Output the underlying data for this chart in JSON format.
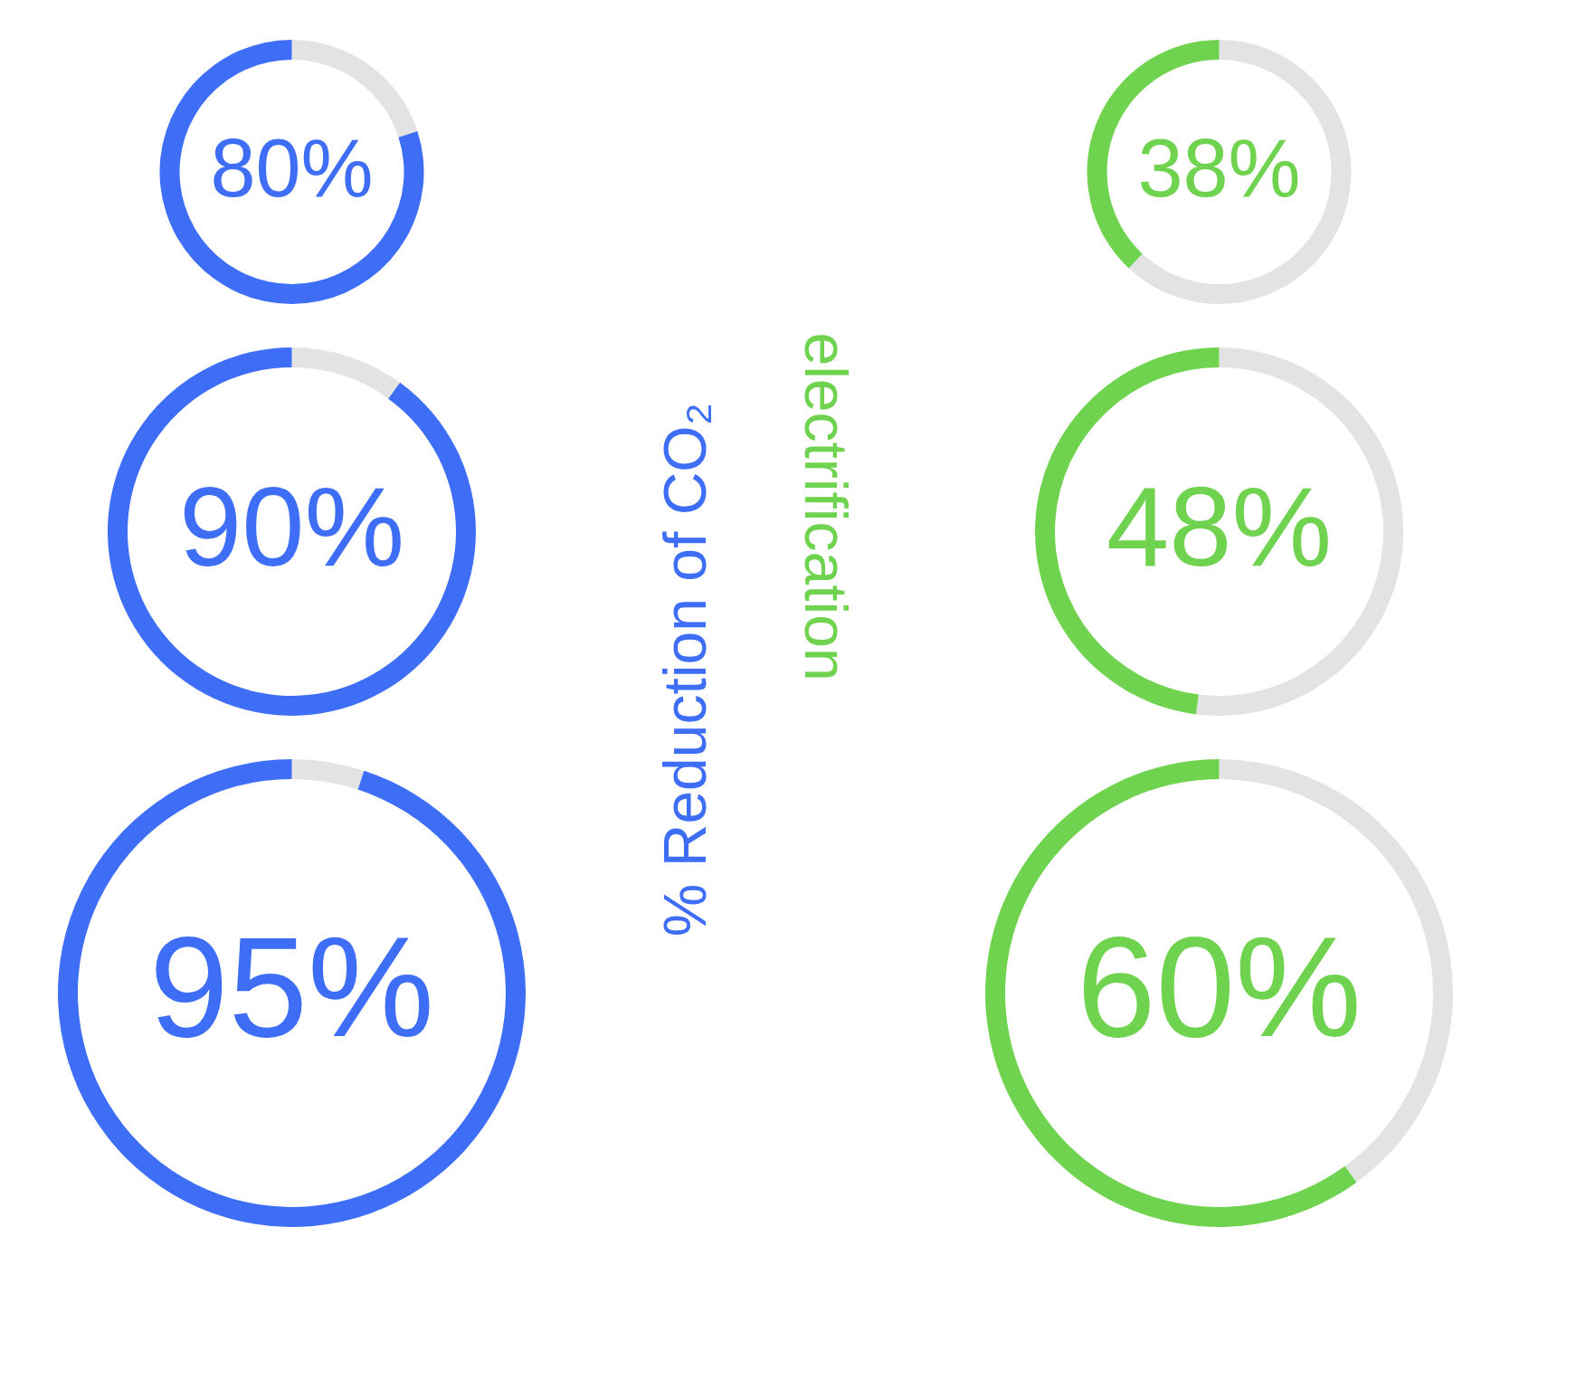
{
  "chart_data": [
    {
      "type": "donut",
      "categories": [
        null,
        null
      ],
      "values": [
        20,
        80
      ],
      "colors": [
        "#e3e3e3",
        "#3d6ef5"
      ],
      "value_labels": [
        null,
        "80%"
      ]
    },
    {
      "type": "donut",
      "categories": [
        null,
        null
      ],
      "values": [
        10,
        90
      ],
      "colors": [
        "#e3e3e3",
        "#3d6ef5"
      ],
      "value_labels": [
        null,
        "90%"
      ]
    },
    {
      "type": "donut",
      "categories": [
        null,
        null
      ],
      "values": [
        5,
        95
      ],
      "colors": [
        "#e3e3e3",
        "#3d6ef5"
      ],
      "value_labels": [
        null,
        "95%"
      ]
    },
    {
      "type": "other",
      "annotations": [
        "% Reduction of CO₂",
        "electrification"
      ]
    },
    {
      "type": "donut",
      "categories": [
        null,
        null
      ],
      "values": [
        62,
        38
      ],
      "colors": [
        "#e3e3e3",
        "#6fd34f"
      ],
      "value_labels": [
        null,
        "38%"
      ]
    },
    {
      "type": "donut",
      "categories": [
        null,
        null
      ],
      "values": [
        52,
        48
      ],
      "colors": [
        "#e3e3e3",
        "#6fd34f"
      ],
      "value_labels": [
        null,
        "48%"
      ]
    },
    {
      "type": "donut",
      "categories": [
        null,
        null
      ],
      "values": [
        40,
        60
      ],
      "colors": [
        "#e3e3e3",
        "#6fd34f"
      ],
      "value_labels": [
        null,
        "60%"
      ]
    }
  ]
}
